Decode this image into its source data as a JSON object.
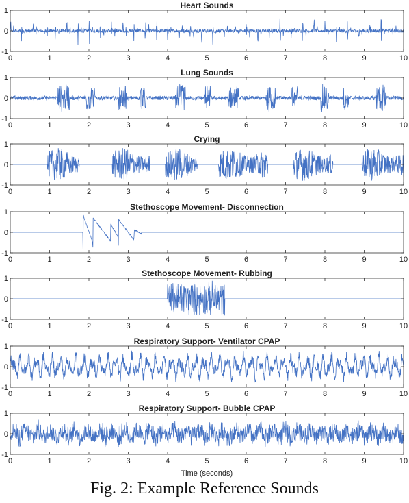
{
  "figure": {
    "caption": "Fig. 2: Example Reference Sounds",
    "xlabel": "Time (seconds)",
    "line_color": "#4472c4"
  },
  "chart_data": [
    {
      "type": "line",
      "title": "Heart Sounds",
      "xlim": [
        0,
        10
      ],
      "ylim": [
        -1,
        1
      ],
      "xticks": [
        0,
        1,
        2,
        3,
        4,
        5,
        6,
        7,
        8,
        9,
        10
      ],
      "yticks": [
        -1,
        0,
        1
      ],
      "grid": false,
      "signal": "heart",
      "beats_per_second": 3.5,
      "beat_amplitude": 0.45,
      "noise_amplitude": 0.08
    },
    {
      "type": "line",
      "title": "Lung Sounds",
      "xlim": [
        0,
        10
      ],
      "ylim": [
        -1,
        1
      ],
      "xticks": [
        0,
        1,
        2,
        3,
        4,
        5,
        6,
        7,
        8,
        9,
        10
      ],
      "yticks": [
        -1,
        0,
        1
      ],
      "grid": false,
      "signal": "lung",
      "bursts": [
        [
          1.2,
          1.5
        ],
        [
          1.9,
          2.15
        ],
        [
          2.75,
          2.95
        ],
        [
          3.3,
          3.45
        ],
        [
          4.2,
          4.45
        ],
        [
          4.95,
          5.1
        ],
        [
          5.55,
          5.8
        ],
        [
          6.5,
          6.75
        ],
        [
          7.15,
          7.3
        ],
        [
          7.9,
          8.1
        ],
        [
          8.45,
          8.6
        ],
        [
          9.3,
          9.55
        ]
      ],
      "burst_amplitude": 0.6,
      "noise_amplitude": 0.1
    },
    {
      "type": "line",
      "title": "Crying",
      "xlim": [
        0,
        10
      ],
      "ylim": [
        -1,
        1
      ],
      "xticks": [
        0,
        1,
        2,
        3,
        4,
        5,
        6,
        7,
        8,
        9,
        10
      ],
      "yticks": [
        -1,
        0,
        1
      ],
      "grid": false,
      "signal": "crying",
      "bursts": [
        [
          0.95,
          1.75
        ],
        [
          2.6,
          3.55
        ],
        [
          3.95,
          4.75
        ],
        [
          5.3,
          6.55
        ],
        [
          7.2,
          8.2
        ],
        [
          8.95,
          10
        ]
      ],
      "burst_amplitude": 0.8
    },
    {
      "type": "line",
      "title": "Stethoscope Movement- Disconnection",
      "xlim": [
        0,
        10
      ],
      "ylim": [
        -1,
        1
      ],
      "xticks": [
        0,
        1,
        2,
        3,
        4,
        5,
        6,
        7,
        8,
        9,
        10
      ],
      "yticks": [
        -1,
        0,
        1
      ],
      "grid": false,
      "signal": "disconnect",
      "events": [
        {
          "t": 1.85,
          "to": 2.1,
          "amp": 0.95
        },
        {
          "t": 2.1,
          "to": 2.55,
          "amp": 0.8
        },
        {
          "t": 2.55,
          "to": 2.75,
          "amp": 0.45
        },
        {
          "t": 2.75,
          "to": 3.15,
          "amp": 0.7
        },
        {
          "t": 3.15,
          "to": 3.35,
          "amp": 0.15
        }
      ]
    },
    {
      "type": "line",
      "title": "Stethoscope Movement- Rubbing",
      "xlim": [
        0,
        10
      ],
      "ylim": [
        -1,
        1
      ],
      "xticks": [
        0,
        1,
        2,
        3,
        4,
        5,
        6,
        7,
        8,
        9,
        10
      ],
      "yticks": [
        -1,
        0,
        1
      ],
      "grid": false,
      "signal": "rubbing",
      "active": [
        4.0,
        5.45
      ],
      "burst_amplitude": 0.95
    },
    {
      "type": "line",
      "title": "Respiratory Support- Ventilator CPAP",
      "xlim": [
        0,
        10
      ],
      "ylim": [
        -1,
        1
      ],
      "xticks": [
        0,
        1,
        2,
        3,
        4,
        5,
        6,
        7,
        8,
        9,
        10
      ],
      "yticks": [
        -1,
        0,
        1
      ],
      "grid": false,
      "signal": "ventilator",
      "amplitude": 0.6
    },
    {
      "type": "line",
      "title": "Respiratory Support- Bubble CPAP",
      "xlim": [
        0,
        10
      ],
      "ylim": [
        -1,
        1
      ],
      "xticks": [
        0,
        1,
        2,
        3,
        4,
        5,
        6,
        7,
        8,
        9,
        10
      ],
      "yticks": [
        -1,
        0,
        1
      ],
      "grid": false,
      "signal": "bubble",
      "amplitude": 0.55
    }
  ]
}
